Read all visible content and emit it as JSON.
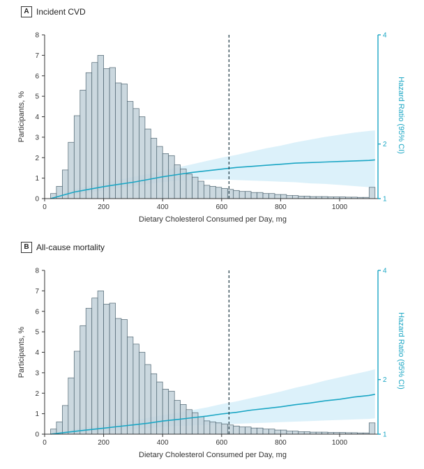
{
  "colors": {
    "bar_fill": "#c2d1d9",
    "bar_stroke": "#4d6470",
    "hr_line": "#1aa6c4",
    "ci_band": "#d6eef9",
    "axis": "#333333",
    "right_axis": "#1aa6c4",
    "vline": "#1a3440"
  },
  "chart_data": [
    {
      "type": "bar",
      "panel_letter": "A",
      "title": "Incident CVD",
      "xlabel": "Dietary Cholesterol Consumed per Day, mg",
      "ylabel": "Participants, %",
      "y2label": "Hazard Ratio (95% CI)",
      "xlim": [
        0,
        1130
      ],
      "ylim": [
        0,
        8
      ],
      "y2lim": [
        1,
        4
      ],
      "x_ticks": [
        "0",
        "200",
        "400",
        "600",
        "800",
        "1000"
      ],
      "x_tick_values": [
        0,
        200,
        400,
        600,
        800,
        1000
      ],
      "y_ticks": [
        "0",
        "1",
        "2",
        "3",
        "4",
        "5",
        "6",
        "7",
        "8"
      ],
      "y2_ticks": [
        "1",
        "2",
        "4"
      ],
      "y2_tick_values": [
        1,
        2,
        4
      ],
      "reference_line_x": 625,
      "histogram": {
        "bin_start": 20,
        "bin_width": 20,
        "values": [
          0.25,
          0.6,
          1.4,
          2.75,
          4.05,
          5.3,
          6.15,
          6.65,
          7.0,
          6.35,
          6.4,
          5.65,
          5.6,
          4.75,
          4.4,
          4.0,
          3.4,
          2.95,
          2.55,
          2.2,
          2.1,
          1.65,
          1.45,
          1.2,
          1.05,
          0.85,
          0.65,
          0.6,
          0.55,
          0.5,
          0.45,
          0.4,
          0.35,
          0.35,
          0.3,
          0.3,
          0.25,
          0.25,
          0.2,
          0.2,
          0.15,
          0.15,
          0.12,
          0.12,
          0.1,
          0.1,
          0.1,
          0.08,
          0.08,
          0.08,
          0.07,
          0.07,
          0.06,
          0.06,
          0.55
        ]
      },
      "hazard_ratio": {
        "x": [
          20,
          100,
          150,
          200,
          250,
          300,
          350,
          400,
          450,
          500,
          550,
          600,
          650,
          700,
          750,
          800,
          850,
          900,
          950,
          1000,
          1050,
          1100,
          1120
        ],
        "hr": [
          1.0,
          1.12,
          1.17,
          1.22,
          1.26,
          1.3,
          1.35,
          1.4,
          1.44,
          1.48,
          1.51,
          1.54,
          1.57,
          1.59,
          1.61,
          1.63,
          1.65,
          1.66,
          1.67,
          1.68,
          1.69,
          1.7,
          1.71
        ],
        "ci_lower": [
          1.0,
          1.07,
          1.11,
          1.15,
          1.19,
          1.23,
          1.27,
          1.3,
          1.33,
          1.34,
          1.35,
          1.35,
          1.34,
          1.33,
          1.32,
          1.31,
          1.3,
          1.28,
          1.27,
          1.25,
          1.23,
          1.21,
          1.2
        ],
        "ci_upper": [
          1.0,
          1.17,
          1.23,
          1.29,
          1.34,
          1.4,
          1.45,
          1.51,
          1.57,
          1.63,
          1.69,
          1.75,
          1.8,
          1.86,
          1.92,
          1.97,
          2.03,
          2.08,
          2.13,
          2.17,
          2.21,
          2.24,
          2.25
        ]
      }
    },
    {
      "type": "bar",
      "panel_letter": "B",
      "title": "All-cause mortality",
      "xlabel": "Dietary Cholesterol Consumed per Day, mg",
      "ylabel": "Participants, %",
      "y2label": "Hazard Ratio (95% CI)",
      "xlim": [
        0,
        1130
      ],
      "ylim": [
        0,
        8
      ],
      "y2lim": [
        1,
        4
      ],
      "x_ticks": [
        "0",
        "200",
        "400",
        "600",
        "800",
        "1000"
      ],
      "x_tick_values": [
        0,
        200,
        400,
        600,
        800,
        1000
      ],
      "y_ticks": [
        "0",
        "1",
        "2",
        "3",
        "4",
        "5",
        "6",
        "7",
        "8"
      ],
      "y2_ticks": [
        "1",
        "2",
        "4"
      ],
      "y2_tick_values": [
        1,
        2,
        4
      ],
      "reference_line_x": 625,
      "histogram": {
        "bin_start": 20,
        "bin_width": 20,
        "values": [
          0.25,
          0.6,
          1.4,
          2.75,
          4.05,
          5.3,
          6.15,
          6.65,
          7.0,
          6.35,
          6.4,
          5.65,
          5.6,
          4.75,
          4.4,
          4.0,
          3.4,
          2.95,
          2.55,
          2.2,
          2.1,
          1.65,
          1.45,
          1.2,
          1.05,
          0.85,
          0.65,
          0.6,
          0.55,
          0.5,
          0.45,
          0.4,
          0.35,
          0.35,
          0.3,
          0.3,
          0.25,
          0.25,
          0.2,
          0.2,
          0.15,
          0.15,
          0.12,
          0.12,
          0.1,
          0.1,
          0.1,
          0.08,
          0.08,
          0.08,
          0.07,
          0.07,
          0.06,
          0.06,
          0.55
        ]
      },
      "hazard_ratio": {
        "x": [
          20,
          100,
          150,
          200,
          250,
          300,
          350,
          400,
          450,
          500,
          550,
          600,
          650,
          700,
          750,
          800,
          850,
          900,
          950,
          1000,
          1050,
          1100,
          1120
        ],
        "hr": [
          1.0,
          1.05,
          1.08,
          1.11,
          1.14,
          1.17,
          1.2,
          1.24,
          1.27,
          1.3,
          1.33,
          1.37,
          1.4,
          1.44,
          1.47,
          1.5,
          1.54,
          1.57,
          1.61,
          1.64,
          1.68,
          1.71,
          1.73
        ],
        "ci_lower": [
          1.0,
          1.01,
          1.03,
          1.05,
          1.07,
          1.09,
          1.11,
          1.13,
          1.15,
          1.16,
          1.17,
          1.18,
          1.19,
          1.2,
          1.21,
          1.22,
          1.23,
          1.24,
          1.25,
          1.26,
          1.27,
          1.28,
          1.29
        ],
        "ci_upper": [
          1.0,
          1.09,
          1.13,
          1.17,
          1.21,
          1.25,
          1.3,
          1.35,
          1.39,
          1.44,
          1.49,
          1.55,
          1.6,
          1.66,
          1.72,
          1.78,
          1.85,
          1.91,
          1.98,
          2.04,
          2.1,
          2.16,
          2.19
        ]
      }
    }
  ]
}
